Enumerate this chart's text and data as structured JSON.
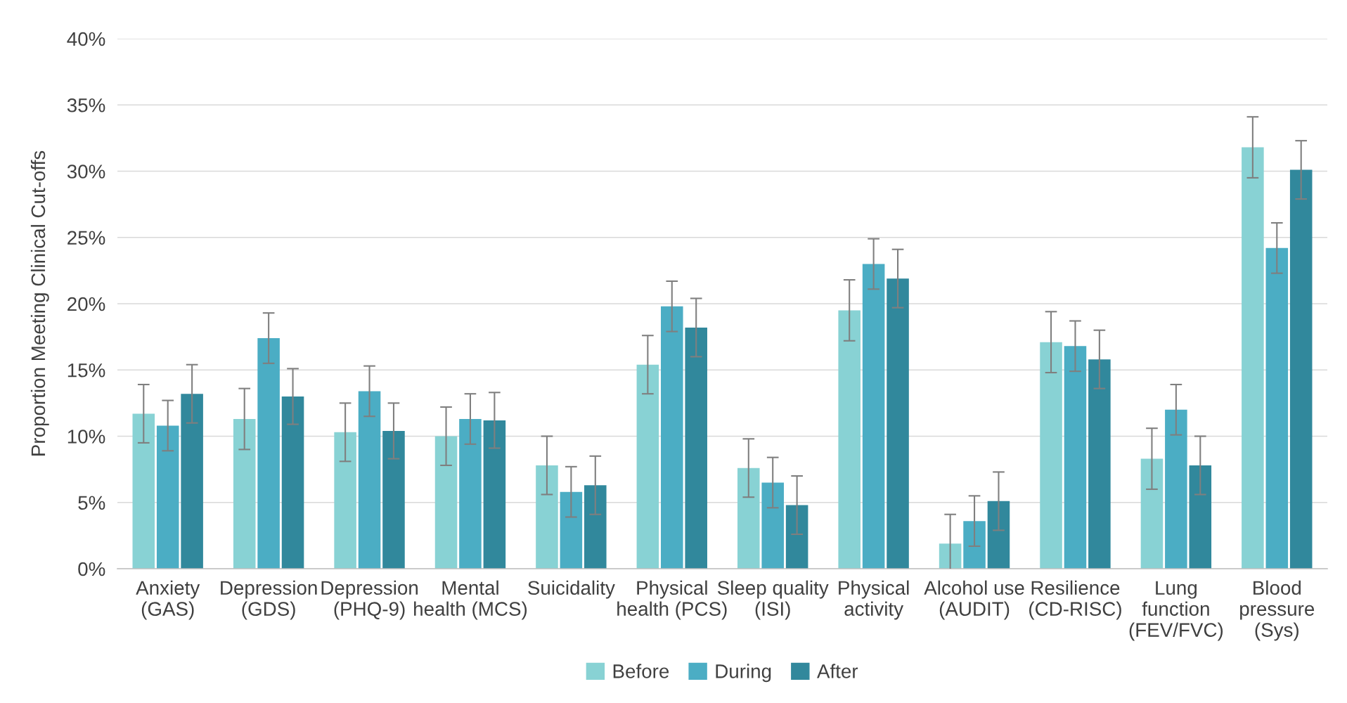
{
  "chart_data": {
    "type": "bar",
    "ylabel": "Proportion Meeting Clinical Cut-offs",
    "categories": [
      "Anxiety\n(GAS)",
      "Depression\n(GDS)",
      "Depression\n(PHQ-9)",
      "Mental\nhealth (MCS)",
      "Suicidality",
      "Physical\nhealth (PCS)",
      "Sleep quality\n(ISI)",
      "Physical\nactivity",
      "Alcohol use\n(AUDIT)",
      "Resilience\n(CD-RISC)",
      "Lung\nfunction\n(FEV/FVC)",
      "Blood\npressure\n(Sys)"
    ],
    "series": [
      {
        "name": "Before",
        "color": "#88d2d4",
        "values": [
          11.7,
          11.3,
          10.3,
          10.0,
          7.8,
          15.4,
          7.6,
          19.5,
          1.9,
          17.1,
          8.3,
          31.8
        ],
        "errors": [
          2.2,
          2.3,
          2.2,
          2.2,
          2.2,
          2.2,
          2.2,
          2.3,
          2.2,
          2.3,
          2.3,
          2.3
        ]
      },
      {
        "name": "During",
        "color": "#4badc4",
        "values": [
          10.8,
          17.4,
          13.4,
          11.3,
          5.8,
          19.8,
          6.5,
          23.0,
          3.6,
          16.8,
          12.0,
          24.2
        ],
        "errors": [
          1.9,
          1.9,
          1.9,
          1.9,
          1.9,
          1.9,
          1.9,
          1.9,
          1.9,
          1.9,
          1.9,
          1.9
        ]
      },
      {
        "name": "After",
        "color": "#31889c",
        "values": [
          13.2,
          13.0,
          10.4,
          11.2,
          6.3,
          18.2,
          4.8,
          21.9,
          5.1,
          15.8,
          7.8,
          30.1
        ],
        "errors": [
          2.2,
          2.1,
          2.1,
          2.1,
          2.2,
          2.2,
          2.2,
          2.2,
          2.2,
          2.2,
          2.2,
          2.2
        ]
      }
    ],
    "ylim": [
      0,
      40
    ],
    "yticks": [
      {
        "value": 0,
        "label": "0%"
      },
      {
        "value": 5,
        "label": "5%"
      },
      {
        "value": 10,
        "label": "10%"
      },
      {
        "value": 15,
        "label": "15%"
      },
      {
        "value": 20,
        "label": "20%"
      },
      {
        "value": 25,
        "label": "25%"
      },
      {
        "value": 30,
        "label": "30%"
      },
      {
        "value": 35,
        "label": "35%"
      },
      {
        "value": 40,
        "label": "40%"
      }
    ],
    "grid": "y",
    "legend": "bottom"
  }
}
